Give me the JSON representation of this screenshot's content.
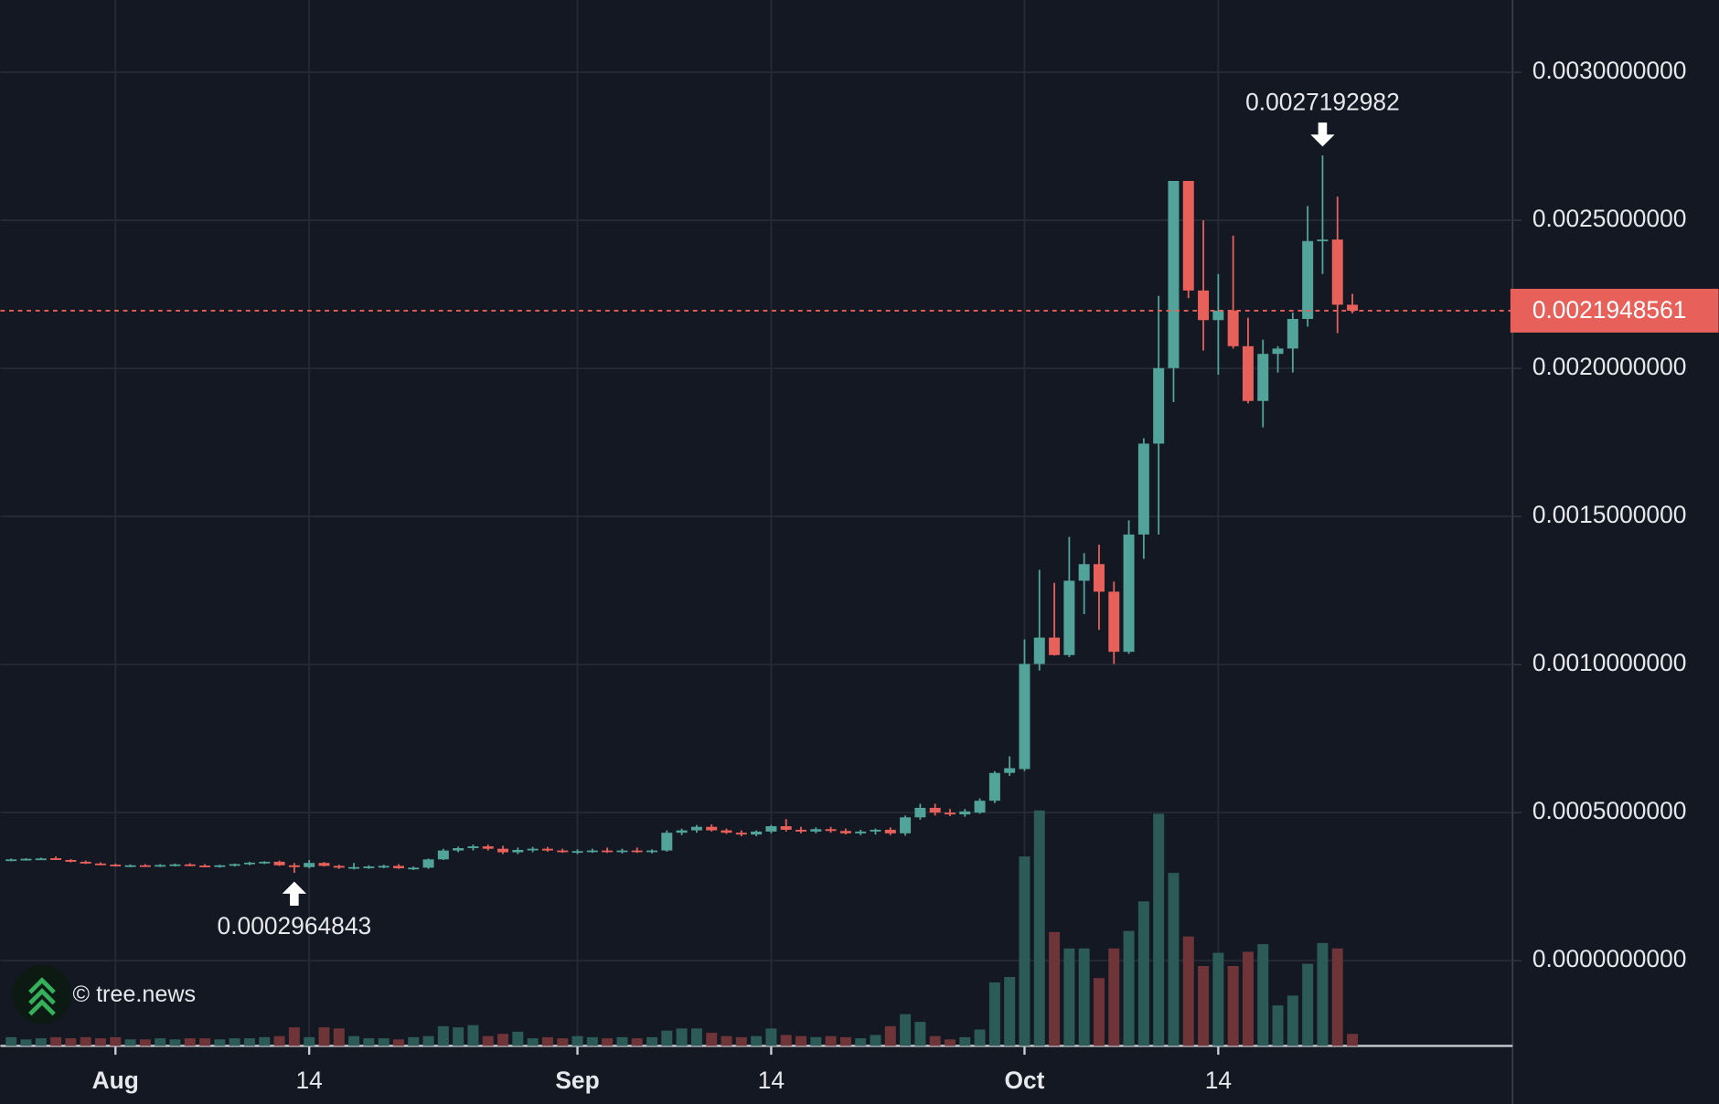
{
  "chart_data": {
    "type": "candlestick",
    "x": [
      "07-25",
      "07-26",
      "07-27",
      "07-28",
      "07-29",
      "07-30",
      "07-31",
      "08-01",
      "08-02",
      "08-03",
      "08-04",
      "08-05",
      "08-06",
      "08-07",
      "08-08",
      "08-09",
      "08-10",
      "08-11",
      "08-12",
      "08-13",
      "08-14",
      "08-15",
      "08-16",
      "08-17",
      "08-18",
      "08-19",
      "08-20",
      "08-21",
      "08-22",
      "08-23",
      "08-24",
      "08-25",
      "08-26",
      "08-27",
      "08-28",
      "08-29",
      "08-30",
      "08-31",
      "09-01",
      "09-02",
      "09-03",
      "09-04",
      "09-05",
      "09-06",
      "09-07",
      "09-08",
      "09-09",
      "09-10",
      "09-11",
      "09-12",
      "09-13",
      "09-14",
      "09-15",
      "09-16",
      "09-17",
      "09-18",
      "09-19",
      "09-20",
      "09-21",
      "09-22",
      "09-23",
      "09-24",
      "09-25",
      "09-26",
      "09-27",
      "09-28",
      "09-29",
      "09-30",
      "10-01",
      "10-02",
      "10-03",
      "10-04",
      "10-05",
      "10-06",
      "10-07",
      "10-08",
      "10-09",
      "10-10",
      "10-11",
      "10-12",
      "10-13",
      "10-14",
      "10-15",
      "10-16",
      "10-17",
      "10-18",
      "10-19",
      "10-20",
      "10-21",
      "10-22",
      "10-23"
    ],
    "ohlc": [
      [
        0.00034,
        0.000345,
        0.000336,
        0.000342
      ],
      [
        0.000342,
        0.000346,
        0.000338,
        0.000344
      ],
      [
        0.000344,
        0.000348,
        0.00034,
        0.000345
      ],
      [
        0.000346,
        0.000352,
        0.00034,
        0.00034
      ],
      [
        0.00034,
        0.000343,
        0.000332,
        0.000334
      ],
      [
        0.000334,
        0.000338,
        0.000326,
        0.000328
      ],
      [
        0.000328,
        0.000332,
        0.000322,
        0.000324
      ],
      [
        0.000324,
        0.000328,
        0.000318,
        0.00032
      ],
      [
        0.00032,
        0.000325,
        0.000316,
        0.000322
      ],
      [
        0.000322,
        0.000326,
        0.000317,
        0.00032
      ],
      [
        0.00032,
        0.000326,
        0.000316,
        0.000323
      ],
      [
        0.000323,
        0.000328,
        0.000318,
        0.000325
      ],
      [
        0.000325,
        0.000329,
        0.000319,
        0.000321
      ],
      [
        0.000321,
        0.000326,
        0.000315,
        0.000318
      ],
      [
        0.000318,
        0.000324,
        0.000314,
        0.000322
      ],
      [
        0.000322,
        0.000328,
        0.000318,
        0.000326
      ],
      [
        0.000326,
        0.000334,
        0.000322,
        0.000331
      ],
      [
        0.000331,
        0.000336,
        0.000326,
        0.000334
      ],
      [
        0.000334,
        0.000338,
        0.00032,
        0.000322
      ],
      [
        0.000322,
        0.00033,
        0.0002964843,
        0.000316
      ],
      [
        0.000316,
        0.00034,
        0.000312,
        0.00033
      ],
      [
        0.00033,
        0.000333,
        0.000318,
        0.00032
      ],
      [
        0.00032,
        0.000324,
        0.00031,
        0.000314
      ],
      [
        0.000314,
        0.00033,
        0.000308,
        0.000316
      ],
      [
        0.000316,
        0.000322,
        0.00031,
        0.000318
      ],
      [
        0.000318,
        0.000324,
        0.000312,
        0.00032
      ],
      [
        0.00032,
        0.000326,
        0.00031,
        0.000312
      ],
      [
        0.000312,
        0.000318,
        0.000306,
        0.000314
      ],
      [
        0.000314,
        0.000345,
        0.00031,
        0.000342
      ],
      [
        0.000342,
        0.000378,
        0.00034,
        0.000372
      ],
      [
        0.000372,
        0.000385,
        0.000366,
        0.00038
      ],
      [
        0.00038,
        0.000392,
        0.000372,
        0.000386
      ],
      [
        0.000386,
        0.000392,
        0.000372,
        0.000378
      ],
      [
        0.000378,
        0.000388,
        0.00036,
        0.000366
      ],
      [
        0.000366,
        0.000382,
        0.00036,
        0.000374
      ],
      [
        0.000374,
        0.000384,
        0.000366,
        0.000378
      ],
      [
        0.000378,
        0.000384,
        0.000368,
        0.000372
      ],
      [
        0.000372,
        0.000378,
        0.000364,
        0.000368
      ],
      [
        0.000368,
        0.000376,
        0.00036,
        0.00037
      ],
      [
        0.00037,
        0.000378,
        0.000364,
        0.000372
      ],
      [
        0.000372,
        0.000382,
        0.000364,
        0.00037
      ],
      [
        0.00037,
        0.000378,
        0.000362,
        0.000372
      ],
      [
        0.000372,
        0.000382,
        0.000364,
        0.000368
      ],
      [
        0.000368,
        0.000376,
        0.000362,
        0.000372
      ],
      [
        0.000372,
        0.00044,
        0.000368,
        0.000432
      ],
      [
        0.000432,
        0.000446,
        0.000424,
        0.00044
      ],
      [
        0.00044,
        0.000458,
        0.000432,
        0.000452
      ],
      [
        0.000452,
        0.00046,
        0.000436,
        0.00044
      ],
      [
        0.00044,
        0.000446,
        0.000428,
        0.000432
      ],
      [
        0.000432,
        0.00044,
        0.00042,
        0.000426
      ],
      [
        0.000426,
        0.00044,
        0.00042,
        0.000436
      ],
      [
        0.000436,
        0.000458,
        0.00043,
        0.000454
      ],
      [
        0.000454,
        0.000478,
        0.000436,
        0.000442
      ],
      [
        0.000442,
        0.000452,
        0.00043,
        0.000436
      ],
      [
        0.000436,
        0.00045,
        0.00043,
        0.000444
      ],
      [
        0.000444,
        0.000452,
        0.000432,
        0.000438
      ],
      [
        0.000438,
        0.000446,
        0.000426,
        0.00043
      ],
      [
        0.00043,
        0.000442,
        0.000424,
        0.000436
      ],
      [
        0.000436,
        0.000446,
        0.000426,
        0.000442
      ],
      [
        0.000442,
        0.00045,
        0.000424,
        0.00043
      ],
      [
        0.00043,
        0.00049,
        0.000422,
        0.000484
      ],
      [
        0.000484,
        0.00053,
        0.000476,
        0.000516
      ],
      [
        0.000516,
        0.00053,
        0.00049,
        0.0005
      ],
      [
        0.0005,
        0.000512,
        0.000488,
        0.000494
      ],
      [
        0.000494,
        0.000512,
        0.000486,
        0.000504
      ],
      [
        0.0005,
        0.000548,
        0.000496,
        0.00054
      ],
      [
        0.00054,
        0.00064,
        0.000532,
        0.000634
      ],
      [
        0.000634,
        0.00069,
        0.000624,
        0.00065
      ],
      [
        0.000647,
        0.001085,
        0.00064,
        0.001002
      ],
      [
        0.001002,
        0.00132,
        0.00098,
        0.001091
      ],
      [
        0.001091,
        0.001276,
        0.00103,
        0.001032
      ],
      [
        0.001032,
        0.001431,
        0.001025,
        0.001283
      ],
      [
        0.001283,
        0.001376,
        0.00117,
        0.001339
      ],
      [
        0.001339,
        0.001405,
        0.001117,
        0.001246
      ],
      [
        0.001246,
        0.00128,
        0.001002,
        0.001043
      ],
      [
        0.001043,
        0.001487,
        0.001036,
        0.001439
      ],
      [
        0.001439,
        0.001764,
        0.001357,
        0.001746
      ],
      [
        0.001746,
        0.002245,
        0.001439,
        0.002001
      ],
      [
        0.002001,
        0.002633,
        0.001886,
        0.002633
      ],
      [
        0.002633,
        0.002633,
        0.002237,
        0.002263
      ],
      [
        0.002263,
        0.0025,
        0.00206,
        0.002163
      ],
      [
        0.002163,
        0.002319,
        0.001979,
        0.002195
      ],
      [
        0.002195,
        0.002448,
        0.002067,
        0.002075
      ],
      [
        0.002075,
        0.002171,
        0.001882,
        0.00189
      ],
      [
        0.00189,
        0.002097,
        0.001801,
        0.002049
      ],
      [
        0.002049,
        0.002075,
        0.001986,
        0.002067
      ],
      [
        0.002067,
        0.002189,
        0.001986,
        0.002167
      ],
      [
        0.002167,
        0.002548,
        0.002141,
        0.00243
      ],
      [
        0.00243,
        0.0027192982,
        0.002319,
        0.002435
      ],
      [
        0.002435,
        0.00258,
        0.002119,
        0.002215
      ],
      [
        0.002215,
        0.002252,
        0.002186,
        0.0021948561
      ]
    ],
    "volume": [
      8,
      6,
      7,
      8,
      7,
      8,
      7,
      8,
      6,
      6,
      7,
      6,
      7,
      7,
      6,
      7,
      7,
      8,
      9,
      17,
      8,
      17,
      16,
      9,
      7,
      7,
      6,
      8,
      9,
      18,
      17,
      19,
      9,
      11,
      13,
      7,
      8,
      7,
      9,
      8,
      7,
      8,
      7,
      8,
      14,
      16,
      16,
      12,
      9,
      8,
      9,
      16,
      10,
      9,
      8,
      9,
      8,
      7,
      10,
      18,
      29,
      22,
      9,
      6,
      8,
      15,
      58,
      63,
      173,
      215,
      104,
      89,
      89,
      62,
      89,
      105,
      132,
      212,
      158,
      100,
      73,
      85,
      73,
      86,
      93,
      37,
      46,
      75,
      94,
      89,
      11
    ],
    "up_color": "#52a49a",
    "down_color": "#e8605a",
    "volume_up_color": "#2b5a57",
    "volume_down_color": "#6e3438",
    "ylim": [
      -0.000288,
      0.003244
    ],
    "yticks": [
      {
        "value": 0,
        "label": "0.0000000000"
      },
      {
        "value": 0.0005,
        "label": "0.0005000000"
      },
      {
        "value": 0.001,
        "label": "0.0010000000"
      },
      {
        "value": 0.0015,
        "label": "0.0015000000"
      },
      {
        "value": 0.002,
        "label": "0.0020000000"
      },
      {
        "value": 0.0025,
        "label": "0.0025000000"
      },
      {
        "value": 0.003,
        "label": "0.0030000000"
      }
    ],
    "xticks": [
      {
        "value": "08-01",
        "label": "Aug"
      },
      {
        "value": "08-14",
        "label": "14"
      },
      {
        "value": "09-01",
        "label": "Sep"
      },
      {
        "value": "09-14",
        "label": "14"
      },
      {
        "value": "10-01",
        "label": "Oct"
      },
      {
        "value": "10-14",
        "label": "14"
      }
    ],
    "grid": true,
    "last_price": 0.0021948561,
    "annotations": [
      {
        "x": "10-21",
        "value": 0.0027192982,
        "position": "above"
      },
      {
        "x": "08-13",
        "value": 0.0002964843,
        "position": "below"
      }
    ],
    "watermark": "© tree.news"
  }
}
